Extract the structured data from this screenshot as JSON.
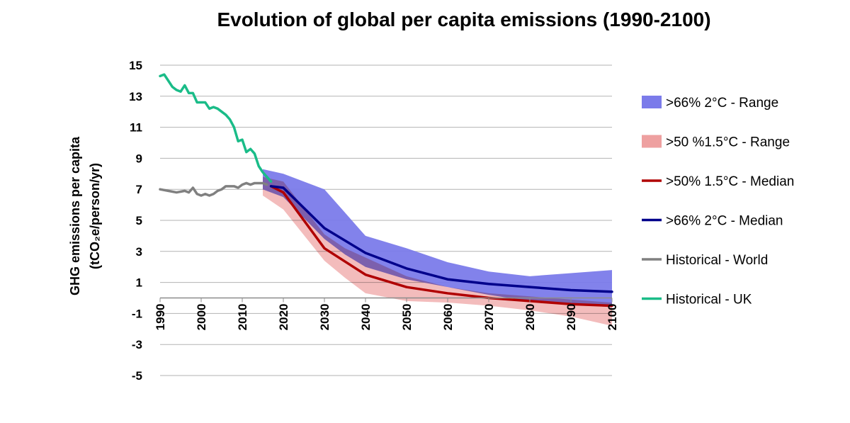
{
  "chart_data": {
    "type": "line",
    "title": "Evolution of global per capita emissions (1990-2100)",
    "ylabel": "GHG emissions per capita",
    "ylabel_unit": "(tCO₂e/person/yr)",
    "xlabel": "",
    "xlim": [
      1990,
      2100
    ],
    "ylim": [
      -5,
      15
    ],
    "x_ticks": [
      1990,
      2000,
      2010,
      2020,
      2030,
      2040,
      2050,
      2060,
      2070,
      2080,
      2090,
      2100
    ],
    "y_ticks": [
      15,
      13,
      11,
      9,
      7,
      5,
      3,
      1,
      -1,
      -3,
      -5
    ],
    "grid": true,
    "legend_position": "right",
    "legend": [
      ">66% 2°C - Range",
      ">50 %1.5°C - Range",
      ">50% 1.5°C - Median",
      ">66% 2°C - Median",
      "Historical - World",
      "Historical - UK"
    ],
    "colors": {
      "range_2c": "#7b7bea",
      "range_15c": "#eea0a0",
      "overlap": "#8b3d8e",
      "median_15c": "#b00000",
      "median_2c": "#00008b",
      "hist_world": "#808080",
      "hist_uk": "#1abc88"
    },
    "areas": [
      {
        "name": ">66% 2°C - Range",
        "x": [
          2015,
          2020,
          2030,
          2035,
          2040,
          2050,
          2060,
          2070,
          2080,
          2090,
          2100
        ],
        "upper": [
          8.3,
          8.0,
          7.0,
          5.5,
          4.0,
          3.2,
          2.3,
          1.7,
          1.4,
          1.6,
          1.8
        ],
        "lower": [
          7.0,
          6.5,
          3.8,
          2.8,
          2.0,
          1.2,
          0.7,
          0.2,
          -0.2,
          -0.4,
          -0.6
        ]
      },
      {
        "name": ">50 %1.5°C - Range",
        "x": [
          2015,
          2020,
          2030,
          2035,
          2040,
          2050,
          2060,
          2070,
          2080,
          2090,
          2100
        ],
        "upper": [
          7.8,
          7.5,
          4.1,
          3.2,
          2.6,
          1.4,
          0.7,
          0.3,
          0.1,
          -0.1,
          -0.3
        ],
        "lower": [
          6.6,
          5.7,
          2.4,
          1.3,
          0.3,
          -0.2,
          -0.3,
          -0.5,
          -0.8,
          -1.2,
          -1.8
        ]
      }
    ],
    "series": [
      {
        "name": ">50% 1.5°C - Median",
        "x": [
          2017,
          2020,
          2030,
          2040,
          2050,
          2060,
          2070,
          2080,
          2090,
          2100
        ],
        "values": [
          7.2,
          6.8,
          3.2,
          1.5,
          0.7,
          0.3,
          0.0,
          -0.2,
          -0.4,
          -0.5
        ]
      },
      {
        "name": ">66% 2°C - Median",
        "x": [
          2017,
          2020,
          2030,
          2040,
          2050,
          2060,
          2070,
          2080,
          2090,
          2100
        ],
        "values": [
          7.2,
          7.1,
          4.5,
          2.9,
          1.9,
          1.2,
          0.9,
          0.7,
          0.5,
          0.4
        ]
      },
      {
        "name": "Historical - World",
        "x": [
          1990,
          1992,
          1994,
          1996,
          1997,
          1998,
          1999,
          2000,
          2001,
          2002,
          2003,
          2004,
          2005,
          2006,
          2007,
          2008,
          2009,
          2010,
          2011,
          2012,
          2013,
          2014,
          2015,
          2016
        ],
        "values": [
          7.0,
          6.9,
          6.8,
          6.9,
          6.8,
          7.1,
          6.7,
          6.6,
          6.7,
          6.6,
          6.7,
          6.9,
          7.0,
          7.2,
          7.2,
          7.2,
          7.1,
          7.3,
          7.4,
          7.3,
          7.4,
          7.4,
          7.4,
          7.3
        ]
      },
      {
        "name": "Historical - UK",
        "x": [
          1990,
          1991,
          1992,
          1993,
          1994,
          1995,
          1996,
          1997,
          1998,
          1999,
          2000,
          2001,
          2002,
          2003,
          2004,
          2005,
          2006,
          2007,
          2008,
          2009,
          2010,
          2011,
          2012,
          2013,
          2014,
          2015,
          2016,
          2017
        ],
        "values": [
          14.3,
          14.4,
          14.0,
          13.6,
          13.4,
          13.3,
          13.7,
          13.2,
          13.2,
          12.6,
          12.6,
          12.6,
          12.2,
          12.3,
          12.2,
          12.0,
          11.8,
          11.5,
          11.0,
          10.1,
          10.2,
          9.4,
          9.6,
          9.3,
          8.5,
          8.1,
          7.8,
          7.5
        ]
      }
    ]
  }
}
